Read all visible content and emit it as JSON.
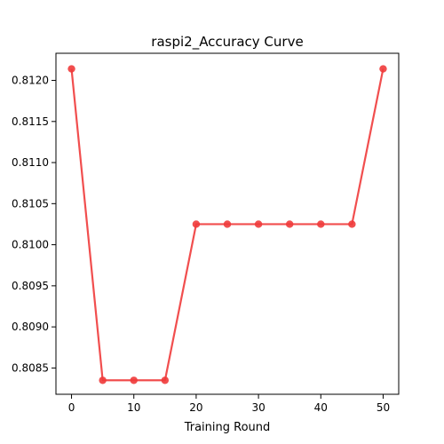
{
  "chart_data": {
    "type": "line",
    "title": "raspi2_Accuracy Curve",
    "xlabel": "Training Round",
    "ylabel": "",
    "xlim": [
      -2.5,
      52.5
    ],
    "ylim": [
      0.80818,
      0.81233
    ],
    "xticks": [
      0,
      10,
      20,
      30,
      40,
      50
    ],
    "xtick_labels": [
      "0",
      "10",
      "20",
      "30",
      "40",
      "50"
    ],
    "yticks": [
      0.8085,
      0.809,
      0.8095,
      0.81,
      0.8105,
      0.811,
      0.8115,
      0.812
    ],
    "ytick_labels": [
      "0.8085",
      "0.8090",
      "0.8095",
      "0.8100",
      "0.8105",
      "0.8110",
      "0.8115",
      "0.8120"
    ],
    "grid": false,
    "legend": "none",
    "series": [
      {
        "color": "#ef3b3b",
        "marker": "circle",
        "x": [
          0,
          5,
          10,
          15,
          20,
          25,
          30,
          35,
          40,
          45,
          50
        ],
        "y": [
          0.81214,
          0.80835,
          0.80835,
          0.80835,
          0.81025,
          0.81025,
          0.81025,
          0.81025,
          0.81025,
          0.81025,
          0.81214
        ]
      }
    ]
  }
}
